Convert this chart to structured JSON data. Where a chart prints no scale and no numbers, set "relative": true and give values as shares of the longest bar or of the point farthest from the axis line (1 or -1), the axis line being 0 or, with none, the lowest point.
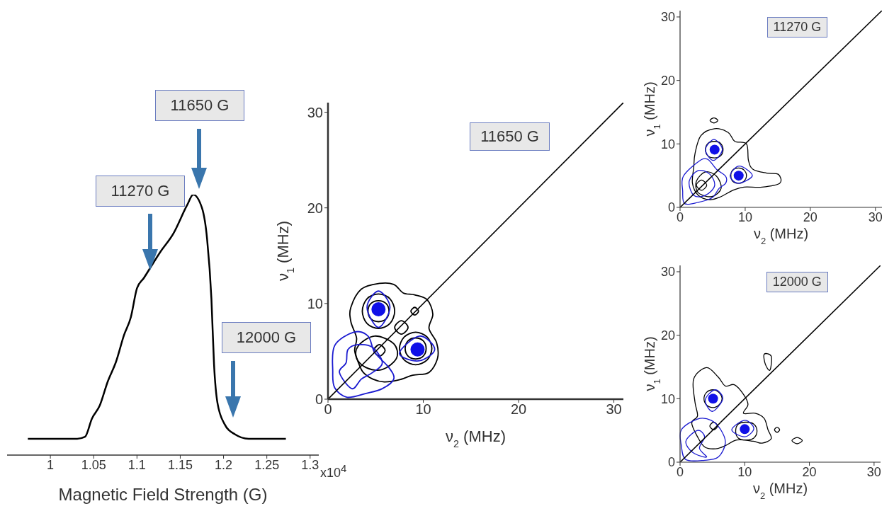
{
  "chart_data": [
    {
      "type": "line",
      "relative": true,
      "xlabel": "Magnetic Field Strength (G)",
      "xlim": [
        0.95,
        1.31
      ],
      "xticks": [
        1,
        1.05,
        1.1,
        1.15,
        1.2,
        1.25,
        1.3
      ],
      "series": [
        {
          "color": "#000000",
          "x": [
            0.974,
            1.031,
            1.04,
            1.048,
            1.057,
            1.066,
            1.076,
            1.085,
            1.093,
            1.1,
            1.108,
            1.127,
            1.142,
            1.158,
            1.165,
            1.175,
            1.181,
            1.186,
            1.189,
            1.193,
            1.201,
            1.213,
            1.229,
            1.272
          ],
          "values": [
            0.0625,
            0.0625,
            0.07,
            0.14,
            0.19,
            0.28,
            0.36,
            0.46,
            0.53,
            0.64,
            0.68,
            0.78,
            0.85,
            0.96,
            1,
            0.95,
            0.83,
            0.6,
            0.35,
            0.2,
            0.12,
            0.08,
            0.0625,
            0.0625
          ]
        }
      ],
      "annotations": [
        "11270 G",
        "11650 G",
        "12000 G",
        "x10$^{4}$"
      ]
    },
    {
      "type": "line",
      "title": "11650 G",
      "xlabel": "ν$_{2}$ (MHz)",
      "ylabel": "ν$_{1}$ (MHz)",
      "xlim": [
        0,
        31
      ],
      "ylim": [
        0,
        31
      ],
      "xticks": [
        0,
        10,
        20,
        30
      ],
      "yticks": [
        0,
        10,
        20,
        30
      ],
      "series": [
        {
          "color": "#000000",
          "x": [
            0,
            31
          ],
          "values": [
            0,
            31
          ]
        },
        {
          "type": "scatter",
          "marker": "circle",
          "color": "#1010e8",
          "x": [
            5.3,
            9.4
          ],
          "values": [
            9.4,
            5.2
          ]
        }
      ]
    },
    {
      "type": "line",
      "title": "11270 G",
      "xlabel": "ν$_{2}$ (MHz)",
      "ylabel": "ν$_{1}$ (MHz)",
      "xlim": [
        0,
        31
      ],
      "ylim": [
        0,
        31
      ],
      "xticks": [
        0,
        10,
        20,
        30
      ],
      "yticks": [
        0,
        10,
        20,
        30
      ],
      "series": [
        {
          "color": "#000000",
          "x": [
            0,
            31
          ],
          "values": [
            0,
            31
          ]
        },
        {
          "type": "scatter",
          "marker": "circle",
          "color": "#1010e8",
          "x": [
            5.3,
            9.0
          ],
          "values": [
            9.1,
            5.0
          ]
        }
      ]
    },
    {
      "type": "line",
      "title": "12000 G",
      "xlabel": "ν$_{2}$ (MHz)",
      "ylabel": "ν$_{1}$ (MHz)",
      "xlim": [
        0,
        31
      ],
      "ylim": [
        0,
        31
      ],
      "xticks": [
        0,
        10,
        20,
        30
      ],
      "yticks": [
        0,
        10,
        20,
        30
      ],
      "series": [
        {
          "color": "#000000",
          "x": [
            0,
            31
          ],
          "values": [
            0,
            31
          ]
        },
        {
          "type": "scatter",
          "marker": "circle",
          "color": "#1010e8",
          "x": [
            5.1,
            10.0
          ],
          "values": [
            10.0,
            5.2
          ]
        }
      ]
    }
  ]
}
